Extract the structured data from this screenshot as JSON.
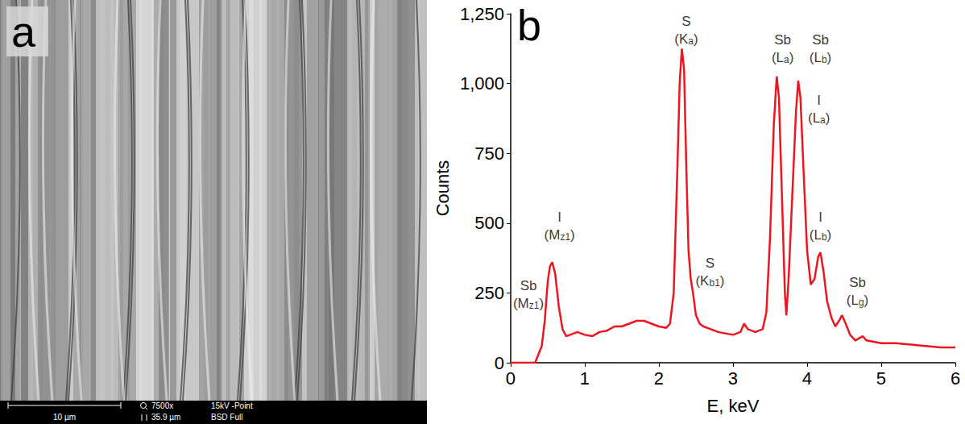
{
  "panel_a": {
    "panel_label": "a",
    "scale_bar": "10 µm",
    "magnification": "7500x",
    "field_width": "35.9 µm",
    "beam": "15kV -Point",
    "detector": "BSD Full"
  },
  "chart_data": {
    "type": "line",
    "panel_label": "b",
    "x_label": "E, keV",
    "y_label": "Counts",
    "color": "#f0141e",
    "x": [
      0,
      0.3,
      0.33,
      0.36,
      0.42,
      0.46,
      0.5,
      0.53,
      0.56,
      0.6,
      0.65,
      0.7,
      0.75,
      0.8,
      0.9,
      1.0,
      1.1,
      1.2,
      1.3,
      1.4,
      1.5,
      1.6,
      1.7,
      1.8,
      1.9,
      2.0,
      2.1,
      2.15,
      2.2,
      2.25,
      2.28,
      2.31,
      2.34,
      2.37,
      2.4,
      2.43,
      2.46,
      2.5,
      2.55,
      2.6,
      2.7,
      2.8,
      2.9,
      3.0,
      3.1,
      3.15,
      3.2,
      3.3,
      3.4,
      3.45,
      3.5,
      3.55,
      3.59,
      3.62,
      3.66,
      3.7,
      3.72,
      3.75,
      3.8,
      3.85,
      3.88,
      3.91,
      3.95,
      4.0,
      4.05,
      4.1,
      4.15,
      4.18,
      4.22,
      4.27,
      4.33,
      4.38,
      4.43,
      4.47,
      4.52,
      4.58,
      4.65,
      4.75,
      4.8,
      4.9,
      5.0,
      5.2,
      5.4,
      5.6,
      5.8,
      6.0
    ],
    "values": [
      0,
      0,
      0,
      20,
      60,
      150,
      290,
      345,
      360,
      320,
      200,
      120,
      95,
      100,
      110,
      100,
      95,
      110,
      115,
      130,
      130,
      140,
      150,
      150,
      140,
      130,
      125,
      140,
      250,
      700,
      1000,
      1125,
      1050,
      700,
      400,
      300,
      250,
      170,
      140,
      130,
      120,
      110,
      105,
      100,
      110,
      140,
      120,
      110,
      120,
      180,
      450,
      850,
      1025,
      950,
      600,
      250,
      170,
      300,
      600,
      900,
      1010,
      950,
      700,
      400,
      280,
      300,
      380,
      395,
      330,
      220,
      160,
      130,
      150,
      170,
      140,
      100,
      80,
      95,
      80,
      75,
      70,
      70,
      65,
      60,
      55,
      55
    ],
    "xlim": [
      0,
      6
    ],
    "xticks": [
      0,
      1,
      2,
      3,
      4,
      5,
      6
    ],
    "ylim": [
      0,
      1250
    ],
    "yticks": [
      0,
      250,
      500,
      750,
      1000,
      1250
    ],
    "grid": false,
    "annotations": [
      {
        "element": "Sb",
        "line": [
          "(M",
          "z1",
          ")"
        ],
        "x": 0.24,
        "y": 188
      },
      {
        "element": "I",
        "line": [
          "(M",
          "z1",
          ")"
        ],
        "x": 0.66,
        "y": 433
      },
      {
        "element": "S",
        "line": [
          "(K",
          "a",
          ")"
        ],
        "x": 2.37,
        "y": 1135
      },
      {
        "element": "S",
        "line": [
          "(K",
          "b1",
          ")"
        ],
        "x": 2.69,
        "y": 268
      },
      {
        "element": "Sb",
        "line": [
          "(L",
          "a",
          ")"
        ],
        "x": 3.67,
        "y": 1068
      },
      {
        "element": "Sb",
        "line": [
          "(L",
          "b",
          ")"
        ],
        "x": 4.18,
        "y": 1068
      },
      {
        "element": "I",
        "line": [
          "(L",
          "a",
          ")"
        ],
        "x": 4.16,
        "y": 852
      },
      {
        "element": "I",
        "line": [
          "(L",
          "b",
          ")"
        ],
        "x": 4.18,
        "y": 433
      },
      {
        "element": "Sb",
        "line": [
          "(L",
          "g",
          ")"
        ],
        "x": 4.68,
        "y": 200
      }
    ]
  }
}
